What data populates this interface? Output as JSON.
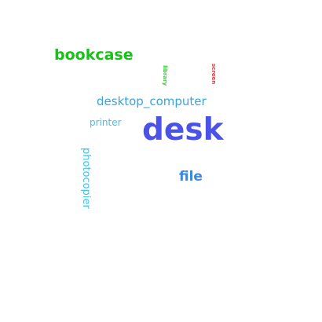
{
  "words": {
    "desk": {
      "text": "desk",
      "color": "#4a52e8",
      "orientation": "horizontal"
    },
    "bookcase": {
      "text": "bookcase",
      "color": "#16c216",
      "orientation": "horizontal"
    },
    "desktop_computer": {
      "text": "desktop_computer",
      "color": "#3aa3e0",
      "orientation": "horizontal"
    },
    "printer": {
      "text": "printer",
      "color": "#3ec3ea",
      "orientation": "horizontal"
    },
    "file": {
      "text": "file",
      "color": "#3b86df",
      "orientation": "horizontal"
    },
    "photocopier": {
      "text": "photocopier",
      "color": "#3ec3ea",
      "orientation": "vertical"
    },
    "library": {
      "text": "library",
      "color": "#37d037",
      "orientation": "vertical"
    },
    "screen": {
      "text": "screen",
      "color": "#e83a3a",
      "orientation": "vertical"
    }
  }
}
